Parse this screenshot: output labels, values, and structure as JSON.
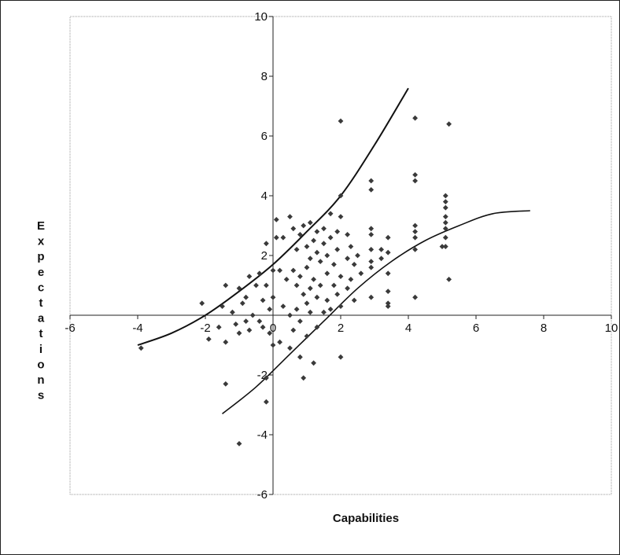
{
  "chart_data": {
    "type": "scatter",
    "xlabel": "Capabilities",
    "ylabel": "Expectations",
    "xlim": [
      -6,
      10
    ],
    "ylim": [
      -6,
      10
    ],
    "x_ticks": [
      -6,
      -4,
      -2,
      0,
      2,
      4,
      6,
      8,
      10
    ],
    "y_ticks": [
      -6,
      -4,
      -2,
      2,
      4,
      6,
      8,
      10
    ],
    "x_tick_labels": [
      "-6",
      "-4",
      "-2",
      "0",
      "2",
      "4",
      "6",
      "8",
      "10"
    ],
    "y_tick_labels": [
      "-6",
      "-4",
      "-2",
      "2",
      "4",
      "6",
      "8",
      "10"
    ],
    "grid": false,
    "legend": "none",
    "colors": {
      "points": "#3a3a3a",
      "curves": "#111111",
      "axes": "#222222",
      "border": "#888888"
    },
    "series": [
      {
        "type": "scatter",
        "points": [
          [
            -3.9,
            -1.1
          ],
          [
            -2.1,
            0.4
          ],
          [
            -1.9,
            -0.8
          ],
          [
            -1.6,
            -0.4
          ],
          [
            -1.5,
            0.3
          ],
          [
            -1.4,
            1.0
          ],
          [
            -1.4,
            -0.9
          ],
          [
            -1.4,
            -2.3
          ],
          [
            -1.2,
            0.1
          ],
          [
            -1.1,
            -0.3
          ],
          [
            -1.0,
            0.9
          ],
          [
            -1.0,
            -0.6
          ],
          [
            -1.0,
            -4.3
          ],
          [
            -0.9,
            0.4
          ],
          [
            -0.8,
            0.6
          ],
          [
            -0.8,
            -0.2
          ],
          [
            -0.7,
            1.3
          ],
          [
            -0.7,
            -0.5
          ],
          [
            -0.6,
            0.0
          ],
          [
            -0.5,
            1.0
          ],
          [
            -0.4,
            1.4
          ],
          [
            -0.4,
            -0.2
          ],
          [
            -0.3,
            0.5
          ],
          [
            -0.3,
            -0.4
          ],
          [
            -0.2,
            2.4
          ],
          [
            -0.2,
            1.0
          ],
          [
            -0.2,
            -2.1
          ],
          [
            -0.2,
            -2.9
          ],
          [
            -0.1,
            0.2
          ],
          [
            -0.1,
            -0.6
          ],
          [
            0.0,
            1.5
          ],
          [
            0.0,
            0.6
          ],
          [
            0.0,
            -1.0
          ],
          [
            0.1,
            3.2
          ],
          [
            0.1,
            2.6
          ],
          [
            0.2,
            1.5
          ],
          [
            0.2,
            -0.9
          ],
          [
            0.3,
            2.6
          ],
          [
            0.3,
            0.3
          ],
          [
            0.4,
            1.2
          ],
          [
            0.5,
            3.3
          ],
          [
            0.5,
            0.0
          ],
          [
            0.5,
            -1.1
          ],
          [
            0.6,
            2.9
          ],
          [
            0.6,
            1.5
          ],
          [
            0.6,
            -0.5
          ],
          [
            0.7,
            2.2
          ],
          [
            0.7,
            1.0
          ],
          [
            0.7,
            0.2
          ],
          [
            0.8,
            2.7
          ],
          [
            0.8,
            1.3
          ],
          [
            0.8,
            -0.2
          ],
          [
            0.8,
            -1.4
          ],
          [
            0.9,
            3.0
          ],
          [
            0.9,
            0.7
          ],
          [
            0.9,
            -2.1
          ],
          [
            1.0,
            2.3
          ],
          [
            1.0,
            1.6
          ],
          [
            1.0,
            0.4
          ],
          [
            1.0,
            -0.7
          ],
          [
            1.1,
            3.1
          ],
          [
            1.1,
            1.9
          ],
          [
            1.1,
            0.9
          ],
          [
            1.1,
            0.1
          ],
          [
            1.2,
            2.5
          ],
          [
            1.2,
            1.2
          ],
          [
            1.2,
            -1.6
          ],
          [
            1.3,
            2.8
          ],
          [
            1.3,
            2.1
          ],
          [
            1.3,
            0.6
          ],
          [
            1.3,
            -0.4
          ],
          [
            1.4,
            1.8
          ],
          [
            1.4,
            1.0
          ],
          [
            1.5,
            2.9
          ],
          [
            1.5,
            2.4
          ],
          [
            1.5,
            0.1
          ],
          [
            1.6,
            2.0
          ],
          [
            1.6,
            1.4
          ],
          [
            1.6,
            0.5
          ],
          [
            1.7,
            3.4
          ],
          [
            1.7,
            2.6
          ],
          [
            1.7,
            0.2
          ],
          [
            1.8,
            1.7
          ],
          [
            1.8,
            1.0
          ],
          [
            1.9,
            2.8
          ],
          [
            1.9,
            2.2
          ],
          [
            1.9,
            0.7
          ],
          [
            2.0,
            6.5
          ],
          [
            2.0,
            4.0
          ],
          [
            2.0,
            3.3
          ],
          [
            2.0,
            1.3
          ],
          [
            2.0,
            0.3
          ],
          [
            2.0,
            -1.4
          ],
          [
            2.2,
            2.7
          ],
          [
            2.2,
            1.9
          ],
          [
            2.2,
            0.9
          ],
          [
            2.3,
            2.3
          ],
          [
            2.3,
            1.2
          ],
          [
            2.4,
            1.7
          ],
          [
            2.4,
            0.5
          ],
          [
            2.5,
            2.0
          ],
          [
            2.6,
            1.4
          ],
          [
            2.9,
            4.5
          ],
          [
            2.9,
            4.2
          ],
          [
            2.9,
            2.9
          ],
          [
            2.9,
            2.7
          ],
          [
            2.9,
            2.2
          ],
          [
            2.9,
            1.8
          ],
          [
            2.9,
            1.6
          ],
          [
            2.9,
            0.6
          ],
          [
            3.2,
            2.2
          ],
          [
            3.2,
            1.9
          ],
          [
            3.4,
            2.6
          ],
          [
            3.4,
            2.1
          ],
          [
            3.4,
            1.4
          ],
          [
            3.4,
            0.8
          ],
          [
            3.4,
            0.4
          ],
          [
            3.4,
            0.3
          ],
          [
            4.2,
            6.6
          ],
          [
            4.2,
            4.7
          ],
          [
            4.2,
            4.5
          ],
          [
            4.2,
            3.0
          ],
          [
            4.2,
            2.8
          ],
          [
            4.2,
            2.6
          ],
          [
            4.2,
            2.2
          ],
          [
            4.2,
            0.6
          ],
          [
            5.0,
            2.3
          ],
          [
            5.1,
            4.0
          ],
          [
            5.1,
            3.8
          ],
          [
            5.1,
            3.6
          ],
          [
            5.1,
            3.3
          ],
          [
            5.1,
            3.1
          ],
          [
            5.1,
            2.9
          ],
          [
            5.1,
            2.6
          ],
          [
            5.1,
            2.3
          ],
          [
            5.2,
            6.4
          ],
          [
            5.2,
            1.2
          ]
        ]
      },
      {
        "type": "line",
        "points": [
          [
            -4.0,
            -1.0
          ],
          [
            -3.0,
            -0.6
          ],
          [
            -2.0,
            0.0
          ],
          [
            -1.0,
            0.8
          ],
          [
            0.0,
            1.7
          ],
          [
            1.0,
            2.8
          ],
          [
            2.0,
            4.0
          ],
          [
            3.0,
            5.7
          ],
          [
            4.0,
            7.6
          ]
        ]
      },
      {
        "type": "line",
        "points": [
          [
            -1.5,
            -3.3
          ],
          [
            -0.5,
            -2.4
          ],
          [
            0.5,
            -1.3
          ],
          [
            1.5,
            -0.2
          ],
          [
            2.5,
            0.9
          ],
          [
            3.5,
            1.8
          ],
          [
            4.5,
            2.5
          ],
          [
            5.5,
            3.0
          ],
          [
            6.5,
            3.4
          ],
          [
            7.6,
            3.5
          ]
        ]
      }
    ]
  }
}
